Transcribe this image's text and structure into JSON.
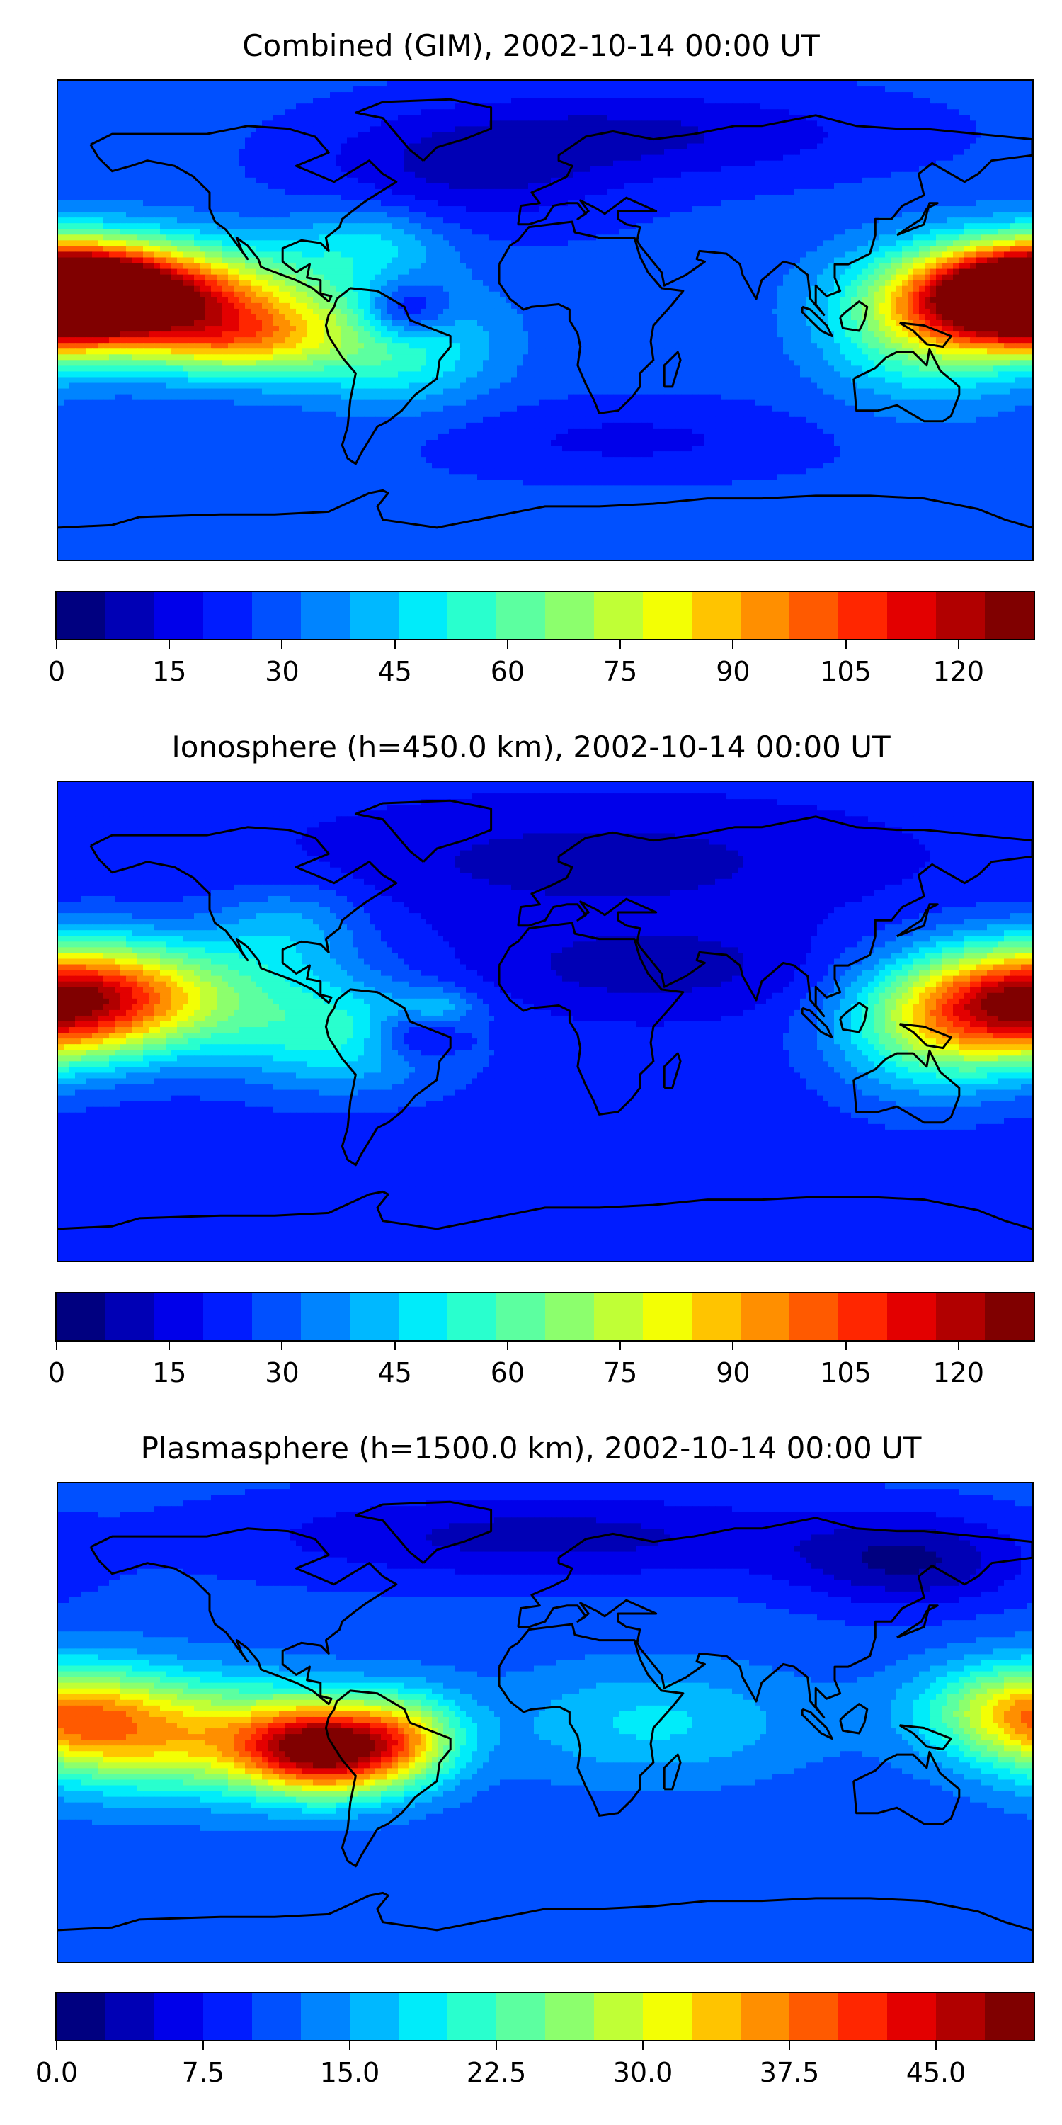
{
  "panels": [
    {
      "title": "Combined (GIM), 2002-10-14 00:00 UT",
      "vmax": 130,
      "ticks": [
        "0",
        "15",
        "30",
        "45",
        "60",
        "75",
        "90",
        "105",
        "120"
      ],
      "tick_values": [
        0,
        15,
        30,
        45,
        60,
        75,
        90,
        105,
        120
      ],
      "field": {
        "base": 28,
        "blobs": [
          {
            "lon": -150,
            "lat": 8,
            "amp": 80,
            "slon": 45,
            "slat": 14
          },
          {
            "lon": -175,
            "lat": 10,
            "amp": 25,
            "slon": 20,
            "slat": 12
          },
          {
            "lon": -110,
            "lat": -8,
            "amp": 40,
            "slon": 25,
            "slat": 10
          },
          {
            "lon": 178,
            "lat": 10,
            "amp": 85,
            "slon": 30,
            "slat": 13
          },
          {
            "lon": 140,
            "lat": -5,
            "amp": 30,
            "slon": 25,
            "slat": 18
          },
          {
            "lon": -55,
            "lat": -10,
            "amp": 28,
            "slon": 25,
            "slat": 15
          },
          {
            "lon": -52,
            "lat": 3,
            "amp": -30,
            "slon": 12,
            "slat": 8
          },
          {
            "lon": -65,
            "lat": 30,
            "amp": 18,
            "slon": 20,
            "slat": 10
          },
          {
            "lon": -30,
            "lat": 55,
            "amp": -15,
            "slon": 40,
            "slat": 15
          },
          {
            "lon": 40,
            "lat": 70,
            "amp": -15,
            "slon": 60,
            "slat": 12
          },
          {
            "lon": 30,
            "lat": -45,
            "amp": -10,
            "slon": 50,
            "slat": 10
          }
        ]
      }
    },
    {
      "title": "Ionosphere  (h=450.0 km), 2002-10-14 00:00 UT",
      "vmax": 130,
      "ticks": [
        "0",
        "15",
        "30",
        "45",
        "60",
        "75",
        "90",
        "105",
        "120"
      ],
      "tick_values": [
        0,
        15,
        30,
        45,
        60,
        75,
        90,
        105,
        120
      ],
      "field": {
        "base": 22,
        "blobs": [
          {
            "lon": -160,
            "lat": 10,
            "amp": 60,
            "slon": 40,
            "slat": 15
          },
          {
            "lon": 175,
            "lat": 5,
            "amp": 55,
            "slon": 30,
            "slat": 15
          },
          {
            "lon": 140,
            "lat": -5,
            "amp": 28,
            "slon": 25,
            "slat": 18
          },
          {
            "lon": -75,
            "lat": -5,
            "amp": 30,
            "slon": 30,
            "slat": 15
          },
          {
            "lon": -48,
            "lat": -5,
            "amp": -22,
            "slon": 12,
            "slat": 7
          },
          {
            "lon": -40,
            "lat": 5,
            "amp": 15,
            "slon": 10,
            "slat": 5
          },
          {
            "lon": 40,
            "lat": 20,
            "amp": -12,
            "slon": 50,
            "slat": 12
          },
          {
            "lon": 20,
            "lat": 60,
            "amp": -12,
            "slon": 70,
            "slat": 15
          },
          {
            "lon": -95,
            "lat": 35,
            "amp": 18,
            "slon": 20,
            "slat": 12
          }
        ]
      }
    },
    {
      "title": "Plasmasphere (h=1500.0 km), 2002-10-14 00:00 UT",
      "vmax": 50,
      "ticks": [
        "0.0",
        "7.5",
        "15.0",
        "22.5",
        "30.0",
        "37.5",
        "45.0"
      ],
      "tick_values": [
        0,
        7.5,
        15,
        22.5,
        30,
        37.5,
        45
      ],
      "field": {
        "base": 11,
        "blobs": [
          {
            "lon": -80,
            "lat": -10,
            "amp": 35,
            "slon": 22,
            "slat": 12
          },
          {
            "lon": -130,
            "lat": -5,
            "amp": 18,
            "slon": 35,
            "slat": 15
          },
          {
            "lon": -170,
            "lat": 0,
            "amp": 12,
            "slon": 25,
            "slat": 15
          },
          {
            "lon": -50,
            "lat": -5,
            "amp": 12,
            "slon": 15,
            "slat": 12
          },
          {
            "lon": 170,
            "lat": 5,
            "amp": 12,
            "slon": 25,
            "slat": 12
          },
          {
            "lon": 40,
            "lat": 0,
            "amp": 7,
            "slon": 40,
            "slat": 15
          },
          {
            "lon": 135,
            "lat": 60,
            "amp": -8,
            "slon": 30,
            "slat": 12
          },
          {
            "lon": 0,
            "lat": 70,
            "amp": -7,
            "slon": 80,
            "slat": 12
          }
        ]
      }
    }
  ],
  "palette": [
    "#000080",
    "#0000b5",
    "#0000ea",
    "#001cff",
    "#0050ff",
    "#0084ff",
    "#00b8ff",
    "#00ecfa",
    "#29ffce",
    "#5cffa0",
    "#8cff6d",
    "#c0ff36",
    "#f3ff04",
    "#ffc400",
    "#ff8f00",
    "#ff5a00",
    "#ff2600",
    "#e30000",
    "#b10000",
    "#800000"
  ]
}
